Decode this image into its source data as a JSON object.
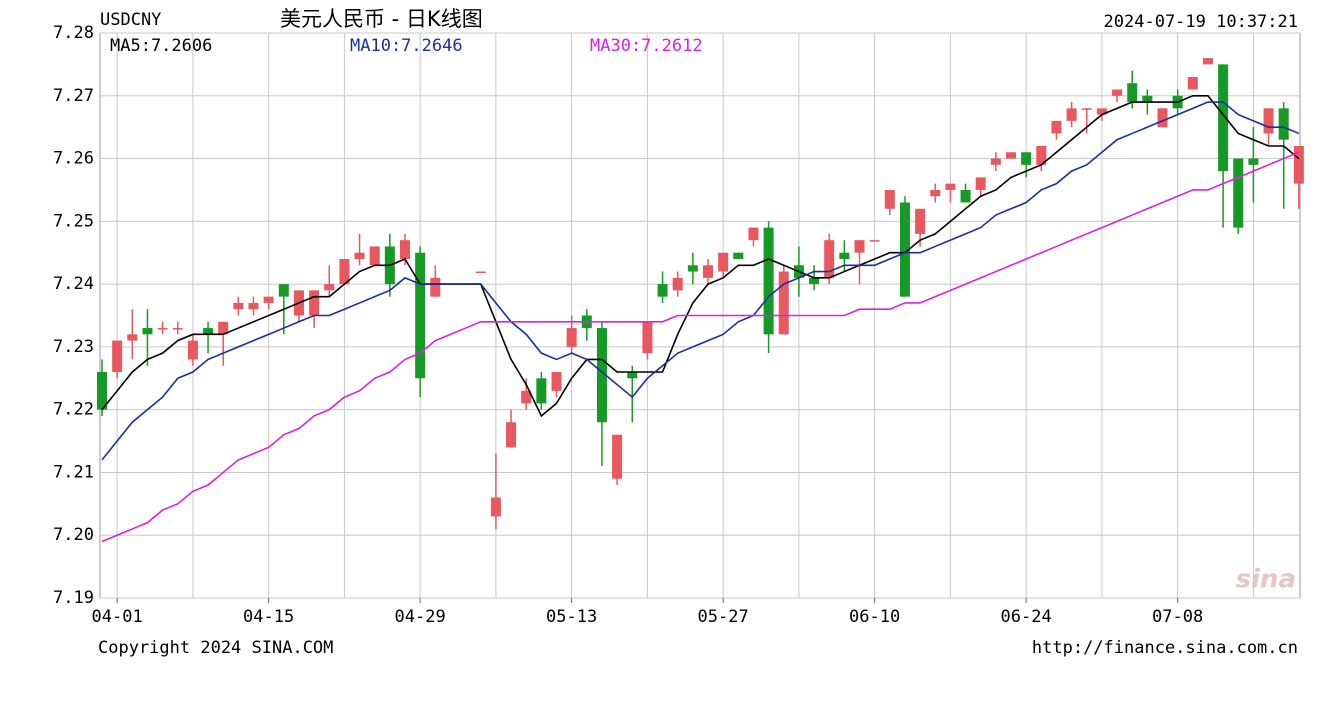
{
  "chart_data": {
    "type": "candlestick",
    "symbol": "USDCNY",
    "title": "美元人民币 - 日K线图",
    "timestamp": "2024-07-19 10:37:21",
    "copyright": "Copyright 2024 SINA.COM",
    "url": "http://finance.sina.com.cn",
    "watermark": "sina",
    "up_color": "#e8585e",
    "down_color": "#169a26",
    "grid": true,
    "ylim": [
      7.19,
      7.28
    ],
    "yticks": [
      7.19,
      {
        "value": 7.2,
        "label": "7.20"
      },
      7.21,
      7.22,
      7.23,
      7.24,
      7.25,
      7.26,
      7.27,
      7.28
    ],
    "categories": [
      null,
      "04-01",
      null,
      null,
      null,
      null,
      null,
      null,
      null,
      null,
      null,
      "04-15",
      null,
      null,
      null,
      null,
      null,
      null,
      null,
      null,
      null,
      "04-29",
      null,
      null,
      null,
      null,
      null,
      null,
      null,
      null,
      null,
      "05-13",
      null,
      null,
      null,
      null,
      null,
      null,
      null,
      null,
      null,
      "05-27",
      null,
      null,
      null,
      null,
      null,
      null,
      null,
      null,
      null,
      "06-10",
      null,
      null,
      null,
      null,
      null,
      null,
      null,
      null,
      null,
      "06-24",
      null,
      null,
      null,
      null,
      null,
      null,
      null,
      null,
      null,
      "07-08",
      null,
      null,
      null,
      null,
      null,
      null,
      null,
      null
    ],
    "open": [
      7.226,
      7.226,
      7.231,
      7.233,
      7.233,
      7.233,
      7.228,
      7.233,
      7.232,
      7.236,
      7.236,
      7.237,
      7.24,
      7.235,
      7.235,
      7.239,
      7.24,
      7.244,
      7.243,
      7.246,
      7.244,
      7.245,
      7.238,
      null,
      null,
      7.242,
      7.203,
      7.214,
      7.221,
      7.225,
      7.223,
      7.23,
      7.235,
      7.233,
      7.209,
      7.226,
      7.229,
      7.24,
      7.239,
      7.243,
      7.241,
      7.242,
      7.245,
      7.247,
      7.249,
      7.232,
      7.243,
      7.241,
      7.241,
      7.245,
      7.245,
      7.247,
      7.252,
      7.253,
      7.248,
      7.254,
      7.255,
      7.255,
      7.255,
      7.259,
      7.26,
      7.261,
      7.259,
      7.264,
      7.266,
      7.268,
      7.267,
      7.27,
      7.272,
      7.27,
      7.265,
      7.27,
      7.271,
      7.275,
      7.275,
      7.26,
      7.26,
      7.264,
      7.268,
      7.256
    ],
    "high": [
      7.228,
      7.231,
      7.236,
      7.236,
      7.234,
      7.234,
      7.232,
      7.234,
      7.234,
      7.238,
      7.238,
      7.238,
      7.24,
      7.239,
      7.239,
      7.243,
      7.244,
      7.248,
      7.246,
      7.248,
      7.248,
      7.246,
      7.243,
      null,
      null,
      7.242,
      7.213,
      7.22,
      7.225,
      7.226,
      7.226,
      7.235,
      7.236,
      7.234,
      7.216,
      7.227,
      7.234,
      7.242,
      7.242,
      7.245,
      7.244,
      7.245,
      7.245,
      7.249,
      7.25,
      7.243,
      7.246,
      7.243,
      7.248,
      7.247,
      7.247,
      7.247,
      7.255,
      7.254,
      7.252,
      7.256,
      7.256,
      7.256,
      7.257,
      7.261,
      7.261,
      7.261,
      7.262,
      7.266,
      7.269,
      7.268,
      7.268,
      7.271,
      7.274,
      7.271,
      7.268,
      7.271,
      7.273,
      7.276,
      7.275,
      7.26,
      7.265,
      7.268,
      7.269,
      7.262
    ],
    "low": [
      7.219,
      7.225,
      7.228,
      7.227,
      7.232,
      7.232,
      7.227,
      7.229,
      7.227,
      7.235,
      7.235,
      7.236,
      7.232,
      7.234,
      7.233,
      7.238,
      7.24,
      7.243,
      7.243,
      7.238,
      7.243,
      7.222,
      7.238,
      null,
      null,
      7.242,
      7.201,
      7.214,
      7.22,
      7.22,
      7.222,
      7.229,
      7.231,
      7.211,
      7.208,
      7.218,
      7.228,
      7.237,
      7.238,
      7.24,
      7.24,
      7.241,
      7.244,
      7.246,
      7.229,
      7.232,
      7.238,
      7.239,
      7.24,
      7.242,
      7.24,
      7.247,
      7.251,
      7.238,
      7.246,
      7.253,
      7.253,
      7.253,
      7.254,
      7.258,
      7.26,
      7.257,
      7.258,
      7.263,
      7.265,
      7.264,
      7.266,
      7.269,
      7.268,
      7.267,
      7.265,
      7.267,
      7.271,
      7.275,
      7.249,
      7.248,
      7.253,
      7.262,
      7.252,
      7.252
    ],
    "close": [
      7.22,
      7.231,
      7.232,
      7.232,
      7.233,
      7.233,
      7.231,
      7.232,
      7.234,
      7.237,
      7.237,
      7.238,
      7.238,
      7.239,
      7.239,
      7.24,
      7.244,
      7.245,
      7.246,
      7.24,
      7.247,
      7.225,
      7.241,
      null,
      null,
      7.242,
      7.206,
      7.218,
      7.223,
      7.221,
      7.226,
      7.233,
      7.233,
      7.218,
      7.216,
      7.225,
      7.234,
      7.238,
      7.241,
      7.242,
      7.243,
      7.245,
      7.244,
      7.249,
      7.232,
      7.242,
      7.241,
      7.24,
      7.247,
      7.244,
      7.247,
      7.247,
      7.255,
      7.238,
      7.252,
      7.255,
      7.256,
      7.253,
      7.257,
      7.26,
      7.261,
      7.259,
      7.262,
      7.266,
      7.268,
      7.268,
      7.268,
      7.271,
      7.269,
      7.269,
      7.268,
      7.268,
      7.273,
      7.276,
      7.258,
      7.249,
      7.259,
      7.268,
      7.263,
      7.262
    ],
    "series": [
      {
        "name": "MA5:7.2606",
        "color": "#000000",
        "values": [
          7.22,
          7.223,
          7.226,
          7.228,
          7.229,
          7.231,
          7.232,
          7.232,
          7.232,
          7.233,
          7.234,
          7.235,
          7.236,
          7.237,
          7.238,
          7.238,
          7.24,
          7.242,
          7.243,
          7.243,
          7.244,
          7.24,
          7.24,
          7.24,
          7.24,
          7.24,
          7.234,
          7.228,
          7.224,
          7.219,
          7.221,
          7.225,
          7.228,
          7.228,
          7.226,
          7.226,
          7.226,
          7.226,
          7.232,
          7.237,
          7.24,
          7.241,
          7.243,
          7.243,
          7.244,
          7.243,
          7.242,
          7.241,
          7.241,
          7.242,
          7.243,
          7.244,
          7.245,
          7.245,
          7.247,
          7.248,
          7.25,
          7.252,
          7.254,
          7.255,
          7.257,
          7.258,
          7.259,
          7.261,
          7.263,
          7.265,
          7.267,
          7.268,
          7.269,
          7.269,
          7.269,
          7.269,
          7.27,
          7.27,
          7.267,
          7.264,
          7.263,
          7.262,
          7.262,
          7.26
        ]
      },
      {
        "name": "MA10:7.2646",
        "color": "#1c2f9e",
        "values": [
          7.212,
          7.215,
          7.218,
          7.22,
          7.222,
          7.225,
          7.226,
          7.228,
          7.229,
          7.23,
          7.231,
          7.232,
          7.233,
          7.234,
          7.235,
          7.235,
          7.236,
          7.237,
          7.238,
          7.239,
          7.241,
          7.24,
          7.24,
          7.24,
          7.24,
          7.24,
          7.237,
          7.234,
          7.232,
          7.229,
          7.228,
          7.229,
          7.228,
          7.226,
          7.224,
          7.222,
          7.225,
          7.227,
          7.229,
          7.23,
          7.231,
          7.232,
          7.234,
          7.235,
          7.238,
          7.24,
          7.241,
          7.242,
          7.242,
          7.243,
          7.243,
          7.243,
          7.244,
          7.245,
          7.245,
          7.246,
          7.247,
          7.248,
          7.249,
          7.251,
          7.252,
          7.253,
          7.255,
          7.256,
          7.258,
          7.259,
          7.261,
          7.263,
          7.264,
          7.265,
          7.266,
          7.267,
          7.268,
          7.269,
          7.269,
          7.267,
          7.266,
          7.265,
          7.265,
          7.264
        ]
      },
      {
        "name": "MA30:7.2612",
        "color": "#e020e0",
        "values": [
          7.199,
          7.2,
          7.201,
          7.202,
          7.204,
          7.205,
          7.207,
          7.208,
          7.21,
          7.212,
          7.213,
          7.214,
          7.216,
          7.217,
          7.219,
          7.22,
          7.222,
          7.223,
          7.225,
          7.226,
          7.228,
          7.229,
          7.231,
          7.232,
          7.233,
          7.234,
          7.234,
          7.234,
          7.234,
          7.234,
          7.234,
          7.234,
          7.234,
          7.234,
          7.234,
          7.234,
          7.234,
          7.234,
          7.235,
          7.235,
          7.235,
          7.235,
          7.235,
          7.235,
          7.235,
          7.235,
          7.235,
          7.235,
          7.235,
          7.235,
          7.236,
          7.236,
          7.236,
          7.237,
          7.237,
          7.238,
          7.239,
          7.24,
          7.241,
          7.242,
          7.243,
          7.244,
          7.245,
          7.246,
          7.247,
          7.248,
          7.249,
          7.25,
          7.251,
          7.252,
          7.253,
          7.254,
          7.255,
          7.255,
          7.256,
          7.257,
          7.258,
          7.259,
          7.26,
          7.261
        ]
      }
    ]
  }
}
